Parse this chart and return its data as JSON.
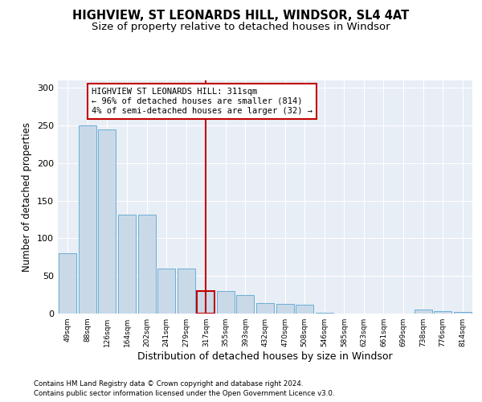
{
  "title": "HIGHVIEW, ST LEONARDS HILL, WINDSOR, SL4 4AT",
  "subtitle": "Size of property relative to detached houses in Windsor",
  "xlabel": "Distribution of detached houses by size in Windsor",
  "ylabel": "Number of detached properties",
  "bins": [
    "49sqm",
    "88sqm",
    "126sqm",
    "164sqm",
    "202sqm",
    "241sqm",
    "279sqm",
    "317sqm",
    "355sqm",
    "393sqm",
    "432sqm",
    "470sqm",
    "508sqm",
    "546sqm",
    "585sqm",
    "623sqm",
    "661sqm",
    "699sqm",
    "738sqm",
    "776sqm",
    "814sqm"
  ],
  "values": [
    80,
    250,
    245,
    132,
    132,
    60,
    60,
    30,
    30,
    25,
    14,
    13,
    12,
    1,
    0,
    0,
    0,
    0,
    5,
    3,
    2
  ],
  "bar_color": "#c9d9e8",
  "bar_edge_color": "#6baed6",
  "highlight_index": 7,
  "highlight_line_color": "#c00000",
  "annotation_title": "HIGHVIEW ST LEONARDS HILL: 311sqm",
  "annotation_line1": "← 96% of detached houses are smaller (814)",
  "annotation_line2": "4% of semi-detached houses are larger (32) →",
  "ylim": [
    0,
    310
  ],
  "yticks": [
    0,
    50,
    100,
    150,
    200,
    250,
    300
  ],
  "plot_bg_color": "#e8eef5",
  "footer1": "Contains HM Land Registry data © Crown copyright and database right 2024.",
  "footer2": "Contains public sector information licensed under the Open Government Licence v3.0."
}
